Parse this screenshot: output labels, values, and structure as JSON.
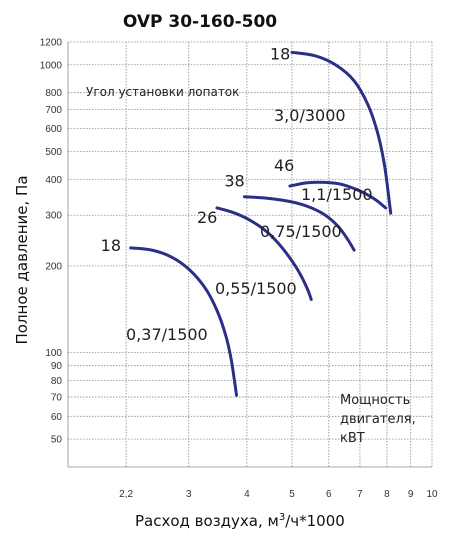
{
  "chart_data": {
    "type": "line",
    "title": "OVP 30-160-500",
    "xlabel": "Расход воздуха, м³/ч*1000",
    "ylabel": "Полное давление, Па",
    "x_scale": "log",
    "y_scale": "log",
    "xlim": [
      1.65,
      10
    ],
    "ylim": [
      40,
      1200
    ],
    "x_ticks": [
      {
        "value": 2.2,
        "label": "2,2"
      },
      {
        "value": 3,
        "label": "3"
      },
      {
        "value": 4,
        "label": "4"
      },
      {
        "value": 5,
        "label": "5"
      },
      {
        "value": 6,
        "label": "6"
      },
      {
        "value": 7,
        "label": "7"
      },
      {
        "value": 8,
        "label": "8"
      },
      {
        "value": 9,
        "label": "9"
      },
      {
        "value": 10,
        "label": "10"
      }
    ],
    "y_ticks": [
      {
        "value": 1200,
        "label": "1200"
      },
      {
        "value": 1000,
        "label": "1000"
      },
      {
        "value": 800,
        "label": "800"
      },
      {
        "value": 700,
        "label": "700"
      },
      {
        "value": 600,
        "label": "600"
      },
      {
        "value": 500,
        "label": "500"
      },
      {
        "value": 400,
        "label": "400"
      },
      {
        "value": 300,
        "label": "300"
      },
      {
        "value": 200,
        "label": "200"
      },
      {
        "value": 100,
        "label": "100"
      },
      {
        "value": 90,
        "label": "90"
      },
      {
        "value": 80,
        "label": "80"
      },
      {
        "value": 70,
        "label": "70"
      },
      {
        "value": 60,
        "label": "60"
      },
      {
        "value": 50,
        "label": "50"
      }
    ],
    "grid": true,
    "annotation": "Угол установки лопаток",
    "legend_note": [
      "Мощность",
      "двигателя,",
      "кВТ"
    ],
    "series": [
      {
        "power_label": "0,37/1500",
        "angle_label": "18",
        "x": [
          2.25,
          2.5,
          2.75,
          3.0,
          3.25,
          3.45,
          3.6,
          3.7,
          3.76,
          3.8
        ],
        "y": [
          231,
          227,
          215,
          195,
          168,
          140,
          115,
          95,
          80,
          71
        ]
      },
      {
        "power_label": "0,55/1500",
        "angle_label": "26",
        "x": [
          3.45,
          3.75,
          4.05,
          4.35,
          4.65,
          4.95,
          5.2,
          5.4,
          5.5
        ],
        "y": [
          318,
          306,
          289,
          268,
          242,
          213,
          188,
          166,
          153
        ]
      },
      {
        "power_label": "0,75/1500",
        "angle_label": "38",
        "x": [
          3.95,
          4.4,
          4.9,
          5.4,
          5.9,
          6.3,
          6.6,
          6.8
        ],
        "y": [
          348,
          344,
          336,
          322,
          300,
          273,
          246,
          227
        ]
      },
      {
        "power_label": "1,1/1500",
        "angle_label": "46",
        "x": [
          4.95,
          5.4,
          5.9,
          6.4,
          6.9,
          7.3,
          7.65,
          7.95
        ],
        "y": [
          379,
          389,
          390,
          384,
          368,
          352,
          335,
          318
        ]
      },
      {
        "power_label": "3,0/3000",
        "angle_label": "18",
        "x": [
          5.0,
          5.6,
          6.2,
          6.8,
          7.3,
          7.65,
          7.9,
          8.05,
          8.15
        ],
        "y": [
          1105,
          1075,
          1000,
          880,
          720,
          575,
          450,
          360,
          305
        ]
      }
    ]
  }
}
